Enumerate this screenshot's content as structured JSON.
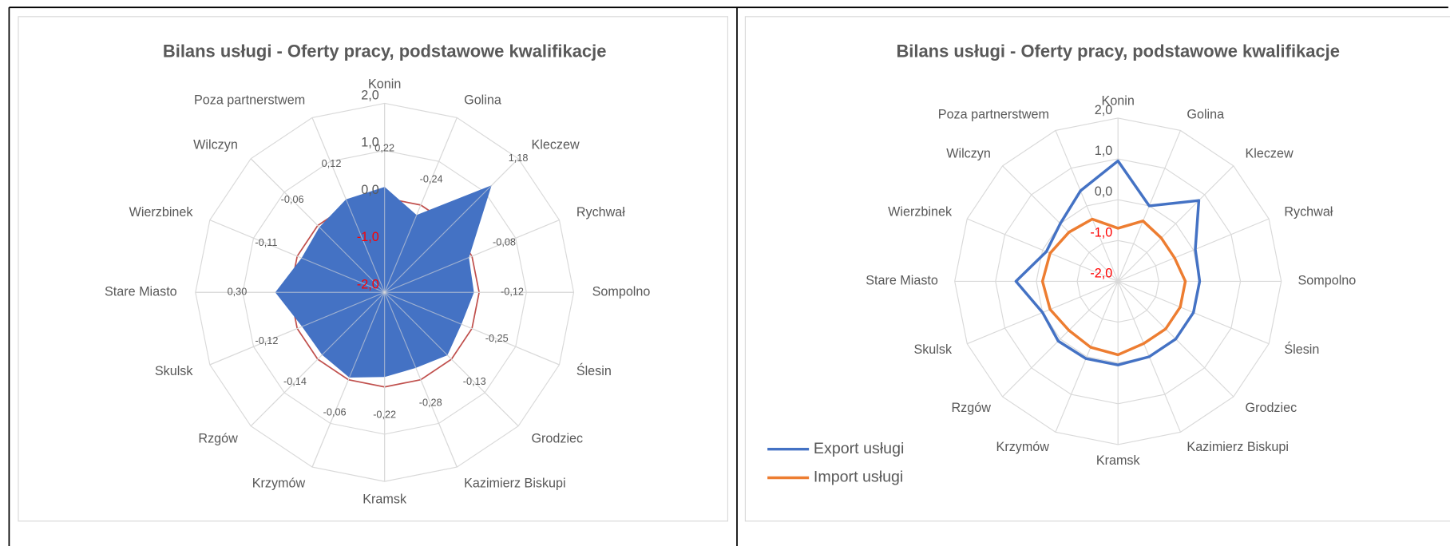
{
  "chart_data": [
    {
      "type": "radar",
      "title": "Bilans usługi - Oferty pracy, podstawowe kwalifikacje",
      "categories": [
        "Konin",
        "Golina",
        "Kleczew",
        "Rychwał",
        "Sompolno",
        "Ślesin",
        "Grodziec",
        "Kazimierz Biskupi",
        "Kramsk",
        "Krzymów",
        "Rzgów",
        "Skulsk",
        "Stare Miasto",
        "Wierzbinek",
        "Wilczyn",
        "Poza partnerstwem"
      ],
      "values": [
        0.22,
        -0.24,
        1.18,
        -0.08,
        -0.12,
        -0.25,
        -0.13,
        -0.28,
        -0.22,
        -0.06,
        -0.14,
        -0.12,
        0.3,
        -0.11,
        -0.06,
        0.12
      ],
      "value_labels": [
        "0,22",
        "-0,24",
        "1,18",
        "-0,08",
        "-0,12",
        "-0,25",
        "-0,13",
        "-0,28",
        "-0,22",
        "-0,06",
        "-0,14",
        "-0,12",
        "0,30",
        "-0,11",
        "-0,06",
        "0,12"
      ],
      "color": "#4472c4",
      "filled": true,
      "ylim": [
        -2,
        2
      ],
      "yticks": [
        {
          "value": -2,
          "label": "-2,0"
        },
        {
          "value": -1,
          "label": "-1,0"
        },
        {
          "value": 0,
          "label": "0,0"
        },
        {
          "value": 1,
          "label": "1,0"
        },
        {
          "value": 2,
          "label": "2,0"
        }
      ],
      "negative_tick_color": "#ff0000",
      "zero_line_color": "#c0504d"
    },
    {
      "type": "radar",
      "title": "Bilans usługi - Oferty pracy, podstawowe kwalifikacje",
      "categories": [
        "Konin",
        "Golina",
        "Kleczew",
        "Rychwał",
        "Sompolno",
        "Ślesin",
        "Grodziec",
        "Kazimierz Biskupi",
        "Kramsk",
        "Krzymów",
        "Rzgów",
        "Skulsk",
        "Stare Miasto",
        "Wierzbinek",
        "Wilczyn",
        "Poza partnerstwem"
      ],
      "series": [
        {
          "name": "Export usługi",
          "color": "#4472c4",
          "values": [
            0.95,
            0.0,
            0.8,
            0.05,
            0.0,
            0.0,
            0.0,
            0.0,
            0.05,
            0.05,
            0.07,
            0.0,
            0.5,
            -0.1,
            0.0,
            0.4
          ]
        },
        {
          "name": "Import usługi",
          "color": "#ed7d31",
          "values": [
            -0.7,
            -0.4,
            -0.5,
            -0.5,
            -0.35,
            -0.35,
            -0.35,
            -0.35,
            -0.2,
            -0.25,
            -0.3,
            -0.2,
            -0.15,
            -0.2,
            -0.3,
            -0.35
          ]
        }
      ],
      "ylim": [
        -2,
        2
      ],
      "yticks": [
        {
          "value": -2,
          "label": "-2,0"
        },
        {
          "value": -1,
          "label": "-1,0"
        },
        {
          "value": 0,
          "label": "0,0"
        },
        {
          "value": 1,
          "label": "1,0"
        },
        {
          "value": 2,
          "label": "2,0"
        }
      ],
      "negative_tick_color": "#ff0000",
      "legend": "left"
    }
  ]
}
